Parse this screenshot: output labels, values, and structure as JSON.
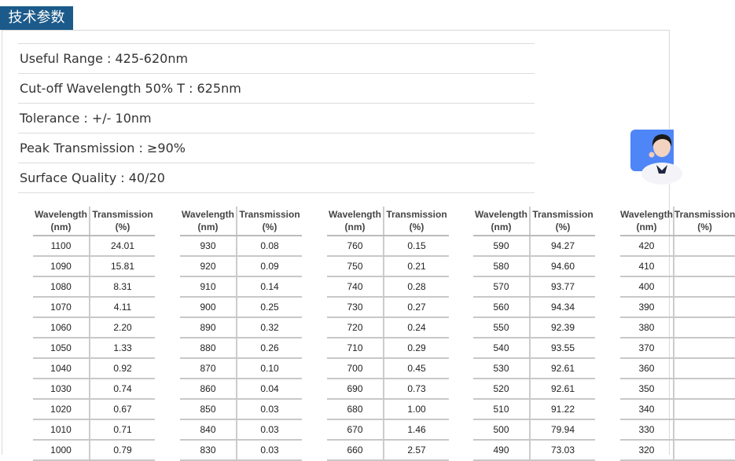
{
  "header": {
    "tab_label": "技术参数"
  },
  "specs": [
    "Useful Range : 425-620nm",
    "Cut-off Wavelength 50% T : 625nm",
    "Tolerance : +/- 10nm",
    "Peak Transmission : ≥90%",
    "Surface Quality : 40/20"
  ],
  "table": {
    "col_wavelength": "Wavelength",
    "col_wavelength_unit": "(nm)",
    "col_transmission": "Transmission",
    "col_transmission_unit": "(%)",
    "groups": [
      {
        "rows": [
          [
            "1100",
            "24.01"
          ],
          [
            "1090",
            "15.81"
          ],
          [
            "1080",
            "8.31"
          ],
          [
            "1070",
            "4.11"
          ],
          [
            "1060",
            "2.20"
          ],
          [
            "1050",
            "1.33"
          ],
          [
            "1040",
            "0.92"
          ],
          [
            "1030",
            "0.74"
          ],
          [
            "1020",
            "0.67"
          ],
          [
            "1010",
            "0.71"
          ],
          [
            "1000",
            "0.79"
          ]
        ]
      },
      {
        "rows": [
          [
            "930",
            "0.08"
          ],
          [
            "920",
            "0.09"
          ],
          [
            "910",
            "0.14"
          ],
          [
            "900",
            "0.25"
          ],
          [
            "890",
            "0.32"
          ],
          [
            "880",
            "0.26"
          ],
          [
            "870",
            "0.10"
          ],
          [
            "860",
            "0.04"
          ],
          [
            "850",
            "0.03"
          ],
          [
            "840",
            "0.03"
          ],
          [
            "830",
            "0.03"
          ]
        ]
      },
      {
        "rows": [
          [
            "760",
            "0.15"
          ],
          [
            "750",
            "0.21"
          ],
          [
            "740",
            "0.28"
          ],
          [
            "730",
            "0.27"
          ],
          [
            "720",
            "0.24"
          ],
          [
            "710",
            "0.29"
          ],
          [
            "700",
            "0.45"
          ],
          [
            "690",
            "0.73"
          ],
          [
            "680",
            "1.00"
          ],
          [
            "670",
            "1.46"
          ],
          [
            "660",
            "2.57"
          ]
        ]
      },
      {
        "rows": [
          [
            "590",
            "94.27"
          ],
          [
            "580",
            "94.60"
          ],
          [
            "570",
            "93.77"
          ],
          [
            "560",
            "94.34"
          ],
          [
            "550",
            "92.39"
          ],
          [
            "540",
            "93.55"
          ],
          [
            "530",
            "92.61"
          ],
          [
            "520",
            "92.61"
          ],
          [
            "510",
            "91.22"
          ],
          [
            "500",
            "79.94"
          ],
          [
            "490",
            "73.03"
          ]
        ]
      },
      {
        "rows": [
          [
            "420",
            ""
          ],
          [
            "410",
            ""
          ],
          [
            "400",
            ""
          ],
          [
            "390",
            ""
          ],
          [
            "380",
            ""
          ],
          [
            "370",
            ""
          ],
          [
            "360",
            ""
          ],
          [
            "350",
            ""
          ],
          [
            "340",
            ""
          ],
          [
            "330",
            ""
          ],
          [
            "320",
            ""
          ]
        ]
      }
    ]
  },
  "support": {
    "icon": "customer-service-agent-icon",
    "color": "#4f86f7"
  }
}
